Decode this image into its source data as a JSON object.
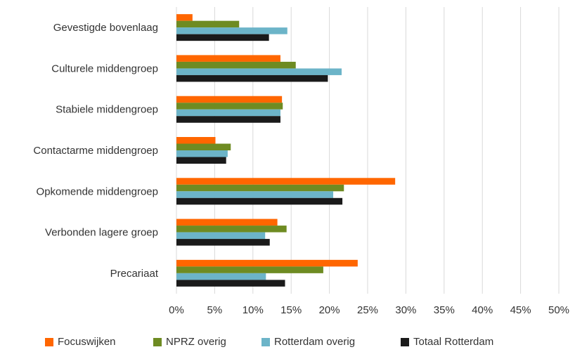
{
  "chart_data": {
    "type": "bar",
    "orientation": "horizontal",
    "categories": [
      "Gevestigde bovenlaag",
      "Culturele middengroep",
      "Stabiele middengroep",
      "Contactarme middengroep",
      "Opkomende middengroep",
      "Verbonden lagere groep",
      "Precariaat"
    ],
    "series": [
      {
        "name": "Focuswijken",
        "color": "#ff6600",
        "values": [
          2.1,
          13.6,
          13.8,
          5.1,
          28.6,
          13.2,
          23.7
        ]
      },
      {
        "name": "NPRZ overig",
        "color": "#6e8b22",
        "values": [
          8.2,
          15.6,
          13.9,
          7.1,
          21.9,
          14.4,
          19.2
        ]
      },
      {
        "name": "Rotterdam overig",
        "color": "#6cb4c8",
        "values": [
          14.5,
          21.6,
          13.6,
          6.7,
          20.5,
          11.6,
          11.7
        ]
      },
      {
        "name": "Totaal Rotterdam",
        "color": "#1a1a1a",
        "values": [
          12.1,
          19.8,
          13.6,
          6.5,
          21.7,
          12.2,
          14.2
        ]
      }
    ],
    "xlim": [
      0,
      50
    ],
    "x_ticks": [
      "0%",
      "5%",
      "10%",
      "15%",
      "20%",
      "25%",
      "30%",
      "35%",
      "40%",
      "45%",
      "50%"
    ],
    "xlabel": "",
    "ylabel": "",
    "grid": "vertical",
    "legend_position": "bottom"
  }
}
